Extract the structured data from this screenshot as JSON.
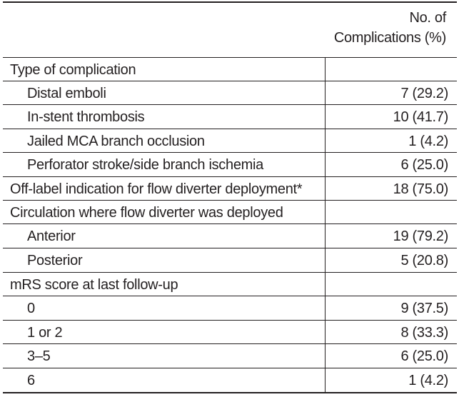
{
  "table": {
    "header": {
      "value_col_line1": "No. of",
      "value_col_line2": "Complications (%)"
    },
    "rows": [
      {
        "label": "Type of complication",
        "value": "",
        "indent": 0
      },
      {
        "label": "Distal emboli",
        "value": "7 (29.2)",
        "indent": 1
      },
      {
        "label": "In-stent thrombosis",
        "value": "10 (41.7)",
        "indent": 1
      },
      {
        "label": "Jailed MCA branch occlusion",
        "value": "1 (4.2)",
        "indent": 1
      },
      {
        "label": "Perforator stroke/side branch ischemia",
        "value": "6 (25.0)",
        "indent": 1
      },
      {
        "label": "Off-label indication for flow diverter deployment*",
        "value": "18 (75.0)",
        "indent": 0
      },
      {
        "label": "Circulation where flow diverter was deployed",
        "value": "",
        "indent": 0
      },
      {
        "label": "Anterior",
        "value": "19 (79.2)",
        "indent": 1
      },
      {
        "label": "Posterior",
        "value": "5 (20.8)",
        "indent": 1
      },
      {
        "label": "mRS score at last follow-up",
        "value": "",
        "indent": 0
      },
      {
        "label": "0",
        "value": "9 (37.5)",
        "indent": 1
      },
      {
        "label": "1 or 2",
        "value": "8 (33.3)",
        "indent": 1
      },
      {
        "label": "3–5",
        "value": "6 (25.0)",
        "indent": 1
      },
      {
        "label": "6",
        "value": "1 (4.2)",
        "indent": 1
      }
    ]
  }
}
